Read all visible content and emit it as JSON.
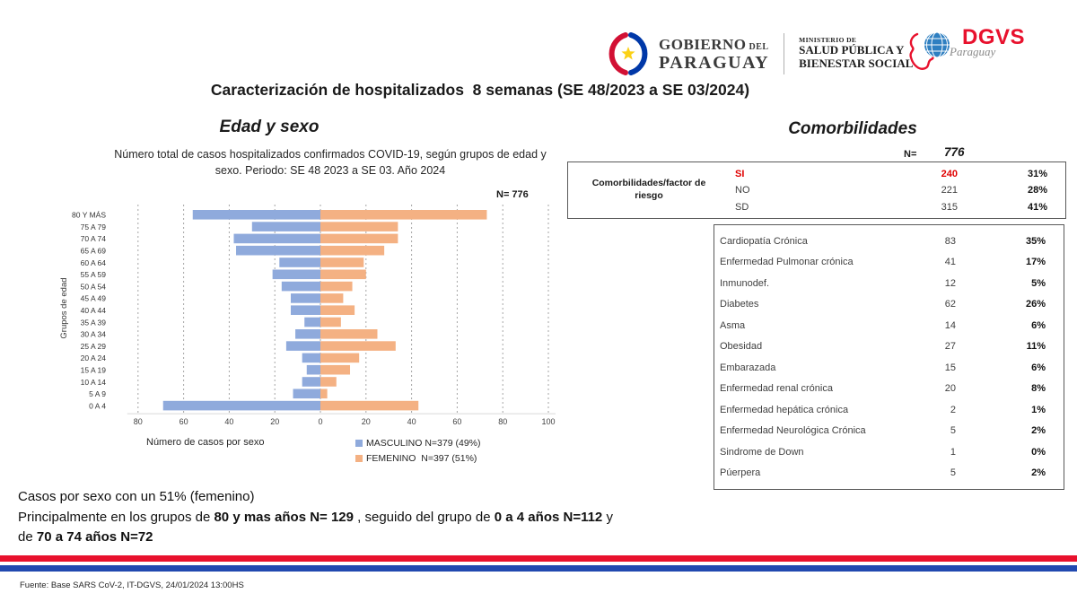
{
  "page_title": "Caracterización de hospitalizados  8 semanas (SE 48/2023 a SE 03/2024)",
  "header": {
    "gov_logo": {
      "line1": "GOBIERNO",
      "line1_small": "DEL",
      "line2": "PARAGUAY"
    },
    "ministry": {
      "line0": "MINISTERIO DE",
      "line1": "SALUD PÚBLICA Y",
      "line2": "BIENESTAR SOCIAL"
    },
    "dgvs": {
      "name": "DGVS",
      "sub": "Paraguay"
    }
  },
  "chart_data": [
    {
      "type": "bar",
      "subtype": "population-pyramid",
      "title": "Edad y sexo",
      "subtitle": "Número total de casos hospitalizados confirmados COVID-19, según grupos de edad y sexo. Periodo: SE 48 2023 a SE 03. Año 2024",
      "n_label": "N= 776",
      "xlabel": "Número de casos por sexo",
      "ylabel": "Grupos de edad",
      "categories": [
        "80 Y MÁS",
        "75 A 79",
        "70 A 74",
        "65 A 69",
        "60 A 64",
        "55 A 59",
        "50 A 54",
        "45 A 49",
        "40 A 44",
        "35 A 39",
        "30 A 34",
        "25 A 29",
        "20 A 24",
        "15 A 19",
        "10 A 14",
        "5 A 9",
        "0 A 4"
      ],
      "series": [
        {
          "name": "MASCULINO N=379 (49%)",
          "side": "left",
          "color": "#8FAADC",
          "values": [
            56,
            30,
            38,
            37,
            18,
            21,
            17,
            13,
            13,
            7,
            11,
            15,
            8,
            6,
            8,
            12,
            69
          ]
        },
        {
          "name": "FEMENINO  N=397 (51%)",
          "side": "right",
          "color": "#F4B183",
          "values": [
            73,
            34,
            34,
            28,
            19,
            20,
            14,
            10,
            15,
            9,
            25,
            33,
            17,
            13,
            7,
            3,
            43
          ]
        }
      ],
      "x_ticks_left": [
        80,
        60,
        40,
        20,
        0
      ],
      "x_ticks_right": [
        20,
        40,
        60,
        80,
        100
      ],
      "xlim_left": 80,
      "xlim_right": 100,
      "grid": "dashed-vertical",
      "legend_position": "bottom-right"
    },
    {
      "type": "table",
      "title": "Comorbilidades",
      "n_prefix": "N=",
      "n_value": "776",
      "header_label": "Comorbilidades/factor de riesgo",
      "summary_rows": [
        {
          "label": "SI",
          "value": "240",
          "pct": "31%",
          "highlight": true
        },
        {
          "label": "NO",
          "value": "221",
          "pct": "28%",
          "highlight": false
        },
        {
          "label": "SD",
          "value": "315",
          "pct": "41%",
          "highlight": false
        }
      ],
      "detail_rows": [
        {
          "label": "Cardiopatía Crónica",
          "value": "83",
          "pct": "35%"
        },
        {
          "label": "Enfermedad Pulmonar crónica",
          "value": "41",
          "pct": "17%"
        },
        {
          "label": "Inmunodef.",
          "value": "12",
          "pct": "5%"
        },
        {
          "label": "Diabetes",
          "value": "62",
          "pct": "26%"
        },
        {
          "label": "Asma",
          "value": "14",
          "pct": "6%"
        },
        {
          "label": "Obesidad",
          "value": "27",
          "pct": "11%"
        },
        {
          "label": "Embarazada",
          "value": "15",
          "pct": "6%"
        },
        {
          "label": "Enfermedad renal crónica",
          "value": "20",
          "pct": "8%"
        },
        {
          "label": "Enfermedad hepática crónica",
          "value": "2",
          "pct": "1%"
        },
        {
          "label": "Enfermedad Neurológica Crónica",
          "value": "5",
          "pct": "2%"
        },
        {
          "label": "Sindrome de Down",
          "value": "1",
          "pct": "0%"
        },
        {
          "label": "Púerpera",
          "value": "5",
          "pct": "2%"
        }
      ]
    }
  ],
  "summary": {
    "line1": "Casos por sexo con un 51% (femenino)",
    "line2_seg1": "Principalmente en los grupos de ",
    "line2_seg2": "80 y mas años N= 129",
    "line2_seg3": " , seguido del grupo de ",
    "line2_seg4": "0 a 4 años N=112",
    "line2_seg5": " y",
    "line3_seg1": "de ",
    "line3_seg2": "70 a 74 años N=72"
  },
  "footer": {
    "source": "Fuente: Base SARS CoV-2, IT-DGVS, 24/01/2024 13:00HS",
    "stripe_red": "#E8112D",
    "stripe_blue": "#2149B0"
  },
  "colors": {
    "masculino": "#8FAADC",
    "femenino": "#F4B183",
    "highlight_red": "#E00000"
  }
}
